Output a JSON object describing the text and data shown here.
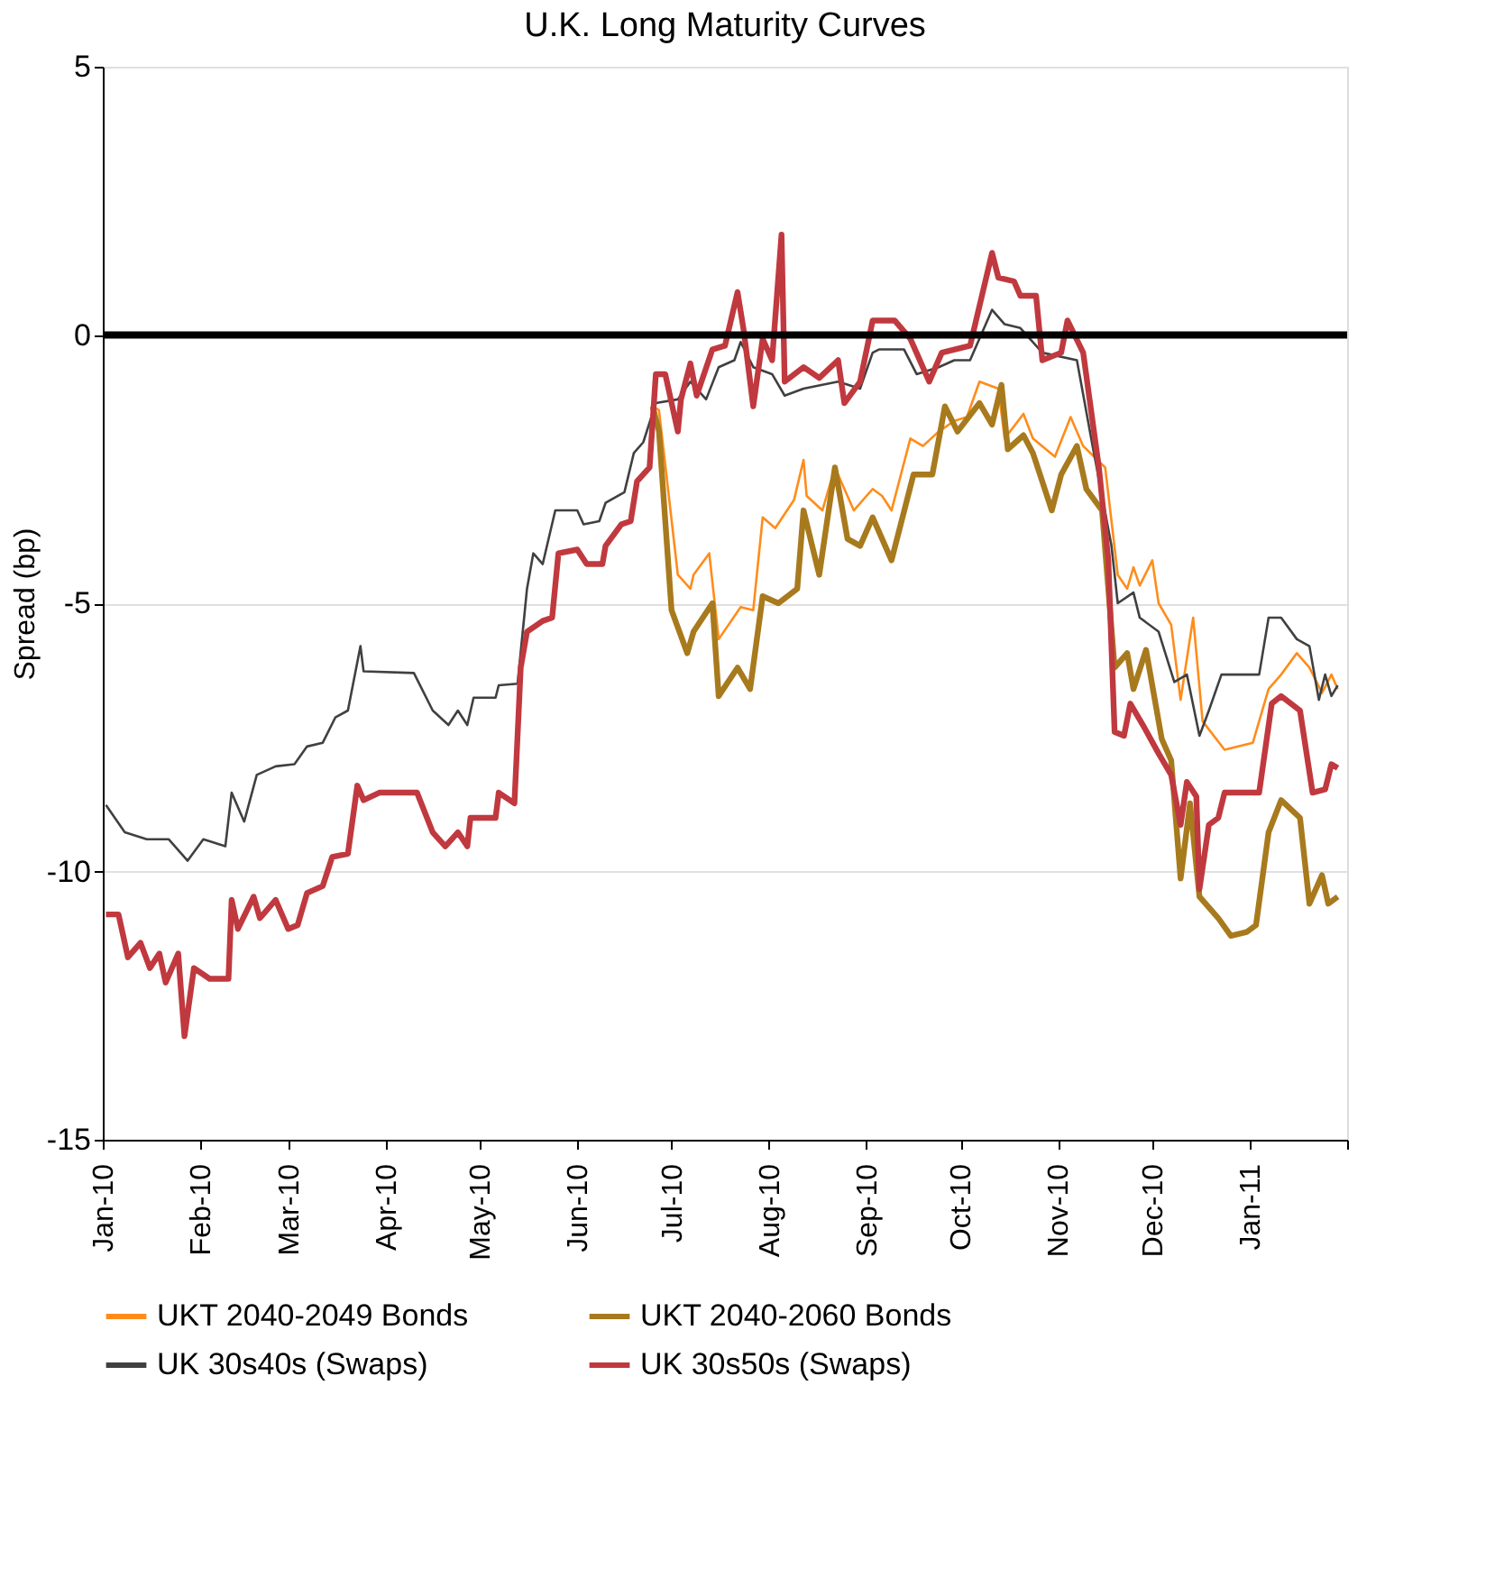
{
  "chart_data": {
    "type": "line",
    "title": "U.K. Long Maturity Curves",
    "ylabel": "Spread (bp)",
    "xlim": [
      "2010-01-01",
      "2011-02-01"
    ],
    "xticks": [
      {
        "value": "2010-01-01",
        "label": "Jan-10"
      },
      {
        "value": "2010-02-01",
        "label": "Feb-10"
      },
      {
        "value": "2010-03-01",
        "label": "Mar-10"
      },
      {
        "value": "2010-04-01",
        "label": "Apr-10"
      },
      {
        "value": "2010-05-01",
        "label": "May-10"
      },
      {
        "value": "2010-06-01",
        "label": "Jun-10"
      },
      {
        "value": "2010-07-01",
        "label": "Jul-10"
      },
      {
        "value": "2010-08-01",
        "label": "Aug-10"
      },
      {
        "value": "2010-09-01",
        "label": "Sep-10"
      },
      {
        "value": "2010-10-01",
        "label": "Oct-10"
      },
      {
        "value": "2010-11-01",
        "label": "Nov-10"
      },
      {
        "value": "2010-12-01",
        "label": "Dec-10"
      },
      {
        "value": "2011-01-01",
        "label": "Jan-11"
      },
      {
        "value": "2011-02-01",
        "label": null
      }
    ],
    "ylim": [
      -15,
      5
    ],
    "yticks": [
      -15,
      -10,
      -5,
      0,
      5
    ],
    "grid": "y",
    "legend": "bottom",
    "line_style": "solid",
    "marker": "none",
    "ref_lines": [
      {
        "axis": "y",
        "value": 0,
        "color": "#000000"
      }
    ],
    "series": [
      {
        "name": "UKT 2040-2049 Bonds",
        "color": "#ff8c1a",
        "x": [
          "2010-06-25",
          "2010-06-27",
          "2010-07-03",
          "2010-07-07",
          "2010-07-08",
          "2010-07-13",
          "2010-07-16",
          "2010-07-23",
          "2010-07-27",
          "2010-07-30",
          "2010-08-03",
          "2010-08-09",
          "2010-08-12",
          "2010-08-13",
          "2010-08-18",
          "2010-08-22",
          "2010-08-28",
          "2010-09-03",
          "2010-09-06",
          "2010-09-09",
          "2010-09-15",
          "2010-09-19",
          "2010-09-24",
          "2010-09-29",
          "2010-10-03",
          "2010-10-07",
          "2010-10-13",
          "2010-10-15",
          "2010-10-21",
          "2010-10-24",
          "2010-10-31",
          "2010-11-05",
          "2010-11-09",
          "2010-11-16",
          "2010-11-20",
          "2010-11-23",
          "2010-11-25",
          "2010-11-27",
          "2010-12-01",
          "2010-12-03",
          "2010-12-07",
          "2010-12-10",
          "2010-12-14",
          "2010-12-17",
          "2010-12-24",
          "2011-01-02",
          "2011-01-07",
          "2011-01-11",
          "2011-01-16",
          "2011-01-20",
          "2011-01-24",
          "2011-01-27",
          "2011-01-29"
        ],
        "values": [
          -1.33,
          -1.4,
          -4.47,
          -4.73,
          -4.47,
          -4.07,
          -5.67,
          -5.07,
          -5.13,
          -3.4,
          -3.6,
          -3.07,
          -2.33,
          -3.0,
          -3.27,
          -2.47,
          -3.27,
          -2.87,
          -3.0,
          -3.27,
          -1.93,
          -2.07,
          -1.8,
          -1.6,
          -1.53,
          -0.87,
          -1.0,
          -1.93,
          -1.47,
          -1.93,
          -2.27,
          -1.53,
          -2.07,
          -2.47,
          -4.47,
          -4.73,
          -4.33,
          -4.67,
          -4.2,
          -5.0,
          -5.4,
          -6.8,
          -5.27,
          -7.2,
          -7.73,
          -7.6,
          -6.6,
          -6.33,
          -5.93,
          -6.2,
          -6.67,
          -6.33,
          -6.6
        ]
      },
      {
        "name": "UKT 2040-2060 Bonds",
        "color": "#a87a1e",
        "x": [
          "2010-06-25",
          "2010-06-27",
          "2010-07-01",
          "2010-07-06",
          "2010-07-08",
          "2010-07-14",
          "2010-07-16",
          "2010-07-22",
          "2010-07-26",
          "2010-07-30",
          "2010-08-04",
          "2010-08-10",
          "2010-08-12",
          "2010-08-17",
          "2010-08-22",
          "2010-08-26",
          "2010-08-30",
          "2010-09-03",
          "2010-09-09",
          "2010-09-16",
          "2010-09-22",
          "2010-09-26",
          "2010-09-30",
          "2010-10-07",
          "2010-10-11",
          "2010-10-14",
          "2010-10-16",
          "2010-10-21",
          "2010-10-24",
          "2010-10-30",
          "2010-11-02",
          "2010-11-07",
          "2010-11-10",
          "2010-11-15",
          "2010-11-19",
          "2010-11-23",
          "2010-11-25",
          "2010-11-29",
          "2010-12-04",
          "2010-12-07",
          "2010-12-10",
          "2010-12-13",
          "2010-12-16",
          "2010-12-22",
          "2010-12-26",
          "2010-12-31",
          "2011-01-03",
          "2011-01-07",
          "2011-01-11",
          "2011-01-17",
          "2011-01-20",
          "2011-01-24",
          "2011-01-26",
          "2011-01-29"
        ],
        "values": [
          -1.33,
          -1.8,
          -5.13,
          -5.93,
          -5.53,
          -5.0,
          -6.73,
          -6.2,
          -6.6,
          -4.87,
          -5.0,
          -4.73,
          -3.27,
          -4.47,
          -2.47,
          -3.8,
          -3.93,
          -3.4,
          -4.2,
          -2.6,
          -2.6,
          -1.33,
          -1.8,
          -1.27,
          -1.67,
          -0.93,
          -2.13,
          -1.87,
          -2.2,
          -3.27,
          -2.6,
          -2.07,
          -2.87,
          -3.27,
          -6.2,
          -5.93,
          -6.6,
          -5.87,
          -7.53,
          -7.93,
          -10.13,
          -8.73,
          -10.47,
          -10.87,
          -11.2,
          -11.13,
          -11.0,
          -9.27,
          -8.67,
          -9.0,
          -10.6,
          -10.07,
          -10.6,
          -10.47
        ]
      },
      {
        "name": "UK 30s40s (Swaps)",
        "color": "#404040",
        "x": [
          "2010-01-02",
          "2010-01-08",
          "2010-01-15",
          "2010-01-22",
          "2010-01-28",
          "2010-02-02",
          "2010-02-09",
          "2010-02-11",
          "2010-02-15",
          "2010-02-19",
          "2010-02-25",
          "2010-03-03",
          "2010-03-07",
          "2010-03-12",
          "2010-03-16",
          "2010-03-20",
          "2010-03-24",
          "2010-03-25",
          "2010-04-10",
          "2010-04-16",
          "2010-04-21",
          "2010-04-24",
          "2010-04-27",
          "2010-04-29",
          "2010-05-06",
          "2010-05-07",
          "2010-05-13",
          "2010-05-16",
          "2010-05-18",
          "2010-05-21",
          "2010-05-25",
          "2010-06-01",
          "2010-06-03",
          "2010-06-08",
          "2010-06-10",
          "2010-06-16",
          "2010-06-19",
          "2010-06-22",
          "2010-06-26",
          "2010-07-03",
          "2010-07-07",
          "2010-07-12",
          "2010-07-16",
          "2010-07-21",
          "2010-07-23",
          "2010-07-27",
          "2010-08-02",
          "2010-08-06",
          "2010-08-12",
          "2010-08-18",
          "2010-08-23",
          "2010-08-30",
          "2010-09-03",
          "2010-09-05",
          "2010-09-13",
          "2010-09-17",
          "2010-09-24",
          "2010-09-29",
          "2010-10-04",
          "2010-10-11",
          "2010-10-15",
          "2010-10-20",
          "2010-10-27",
          "2010-11-07",
          "2010-11-12",
          "2010-11-18",
          "2010-11-20",
          "2010-11-25",
          "2010-11-27",
          "2010-12-03",
          "2010-12-08",
          "2010-12-12",
          "2010-12-16",
          "2010-12-19",
          "2010-12-23",
          "2011-01-04",
          "2011-01-07",
          "2011-01-11",
          "2011-01-16",
          "2011-01-20",
          "2011-01-23",
          "2011-01-25",
          "2011-01-27",
          "2011-01-29"
        ],
        "values": [
          -8.76,
          -9.27,
          -9.4,
          -9.4,
          -9.8,
          -9.4,
          -9.53,
          -8.53,
          -9.07,
          -8.2,
          -8.04,
          -8.0,
          -7.67,
          -7.6,
          -7.13,
          -7.0,
          -5.8,
          -6.27,
          -6.3,
          -7.0,
          -7.27,
          -7.0,
          -7.27,
          -6.76,
          -6.76,
          -6.53,
          -6.5,
          -4.73,
          -4.07,
          -4.27,
          -3.27,
          -3.27,
          -3.53,
          -3.47,
          -3.13,
          -2.93,
          -2.2,
          -2.0,
          -1.27,
          -1.2,
          -0.87,
          -1.2,
          -0.6,
          -0.47,
          -0.13,
          -0.6,
          -0.73,
          -1.13,
          -1.0,
          -0.93,
          -0.87,
          -1.0,
          -0.33,
          -0.27,
          -0.27,
          -0.73,
          -0.6,
          -0.47,
          -0.47,
          0.47,
          0.2,
          0.13,
          -0.33,
          -0.47,
          -2.07,
          -3.93,
          -5.0,
          -4.8,
          -5.27,
          -5.53,
          -6.47,
          -6.33,
          -7.47,
          -7.0,
          -6.33,
          -6.33,
          -5.27,
          -5.27,
          -5.67,
          -5.8,
          -6.8,
          -6.33,
          -6.73,
          -6.53
        ]
      },
      {
        "name": "UK 30s50s (Swaps)",
        "color": "#c0393f",
        "x": [
          "2010-01-02",
          "2010-01-06",
          "2010-01-09",
          "2010-01-13",
          "2010-01-16",
          "2010-01-19",
          "2010-01-21",
          "2010-01-25",
          "2010-01-27",
          "2010-01-30",
          "2010-02-04",
          "2010-02-10",
          "2010-02-11",
          "2010-02-13",
          "2010-02-18",
          "2010-02-20",
          "2010-02-25",
          "2010-03-01",
          "2010-03-04",
          "2010-03-07",
          "2010-03-12",
          "2010-03-15",
          "2010-03-20",
          "2010-03-23",
          "2010-03-25",
          "2010-03-30",
          "2010-04-11",
          "2010-04-16",
          "2010-04-20",
          "2010-04-24",
          "2010-04-27",
          "2010-04-28",
          "2010-05-06",
          "2010-05-07",
          "2010-05-12",
          "2010-05-14",
          "2010-05-16",
          "2010-05-21",
          "2010-05-24",
          "2010-05-26",
          "2010-06-01",
          "2010-06-04",
          "2010-06-09",
          "2010-06-10",
          "2010-06-15",
          "2010-06-18",
          "2010-06-20",
          "2010-06-24",
          "2010-06-26",
          "2010-06-29",
          "2010-07-03",
          "2010-07-04",
          "2010-07-07",
          "2010-07-09",
          "2010-07-14",
          "2010-07-18",
          "2010-07-22",
          "2010-07-24",
          "2010-07-27",
          "2010-07-30",
          "2010-08-02",
          "2010-08-05",
          "2010-08-06",
          "2010-08-12",
          "2010-08-17",
          "2010-08-23",
          "2010-08-25",
          "2010-08-30",
          "2010-09-03",
          "2010-09-10",
          "2010-09-15",
          "2010-09-21",
          "2010-09-25",
          "2010-10-04",
          "2010-10-11",
          "2010-10-13",
          "2010-10-18",
          "2010-10-20",
          "2010-10-25",
          "2010-10-27",
          "2010-11-02",
          "2010-11-04",
          "2010-11-09",
          "2010-11-14",
          "2010-11-17",
          "2010-11-19",
          "2010-11-22",
          "2010-11-24",
          "2010-11-28",
          "2010-12-03",
          "2010-12-07",
          "2010-12-10",
          "2010-12-12",
          "2010-12-15",
          "2010-12-16",
          "2010-12-19",
          "2010-12-22",
          "2010-12-24",
          "2011-01-04",
          "2011-01-08",
          "2011-01-11",
          "2011-01-17",
          "2011-01-21",
          "2011-01-25",
          "2011-01-27",
          "2011-01-29"
        ],
        "values": [
          -10.8,
          -10.8,
          -11.6,
          -11.33,
          -11.8,
          -11.53,
          -12.07,
          -11.53,
          -13.07,
          -11.8,
          -12.0,
          -12.0,
          -10.53,
          -11.07,
          -10.47,
          -10.87,
          -10.53,
          -11.07,
          -11.0,
          -10.4,
          -10.27,
          -9.73,
          -9.67,
          -8.4,
          -8.67,
          -8.53,
          -8.53,
          -9.27,
          -9.53,
          -9.27,
          -9.53,
          -9.0,
          -9.0,
          -8.53,
          -8.73,
          -6.2,
          -5.53,
          -5.33,
          -5.27,
          -4.07,
          -4.0,
          -4.27,
          -4.27,
          -3.93,
          -3.53,
          -3.47,
          -2.73,
          -2.47,
          -0.73,
          -0.73,
          -1.8,
          -1.2,
          -0.53,
          -1.13,
          -0.27,
          -0.2,
          0.8,
          0.07,
          -1.33,
          -0.07,
          -0.47,
          1.87,
          -0.87,
          -0.6,
          -0.8,
          -0.47,
          -1.27,
          -0.87,
          0.27,
          0.27,
          -0.07,
          -0.87,
          -0.33,
          -0.2,
          1.53,
          1.07,
          1.0,
          0.73,
          0.73,
          -0.47,
          -0.33,
          0.27,
          -0.33,
          -2.47,
          -4.2,
          -7.4,
          -7.47,
          -6.87,
          -7.27,
          -7.8,
          -8.2,
          -9.13,
          -8.33,
          -8.6,
          -10.33,
          -9.13,
          -9.0,
          -8.53,
          -8.53,
          -6.87,
          -6.73,
          -7.0,
          -8.53,
          -8.47,
          -8.0,
          -8.07
        ]
      }
    ]
  }
}
